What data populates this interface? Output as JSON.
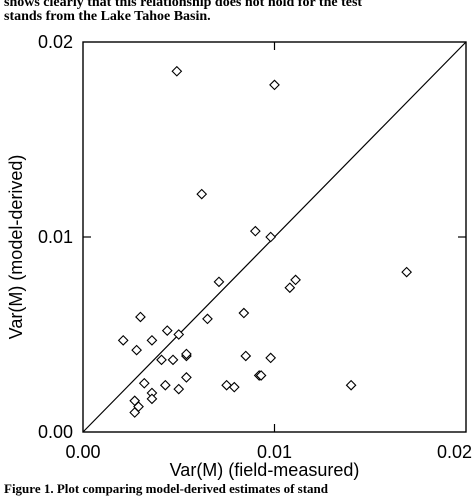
{
  "text_above": [
    "shows clearly that this relationship does not hold for the test",
    "stands from the Lake Tahoe Basin."
  ],
  "caption": "Figure 1. Plot comparing model-derived estimates of stand",
  "chart_data": {
    "type": "scatter",
    "title": "",
    "xlabel": "Var(M) (field-measured)",
    "ylabel": "Var(M) (model-derived)",
    "xlim": [
      0,
      0.02
    ],
    "ylim": [
      0,
      0.02
    ],
    "x_ticks": [
      "0.00",
      "0.01",
      "0.02"
    ],
    "y_ticks": [
      "0.00",
      "0.01",
      "0.02"
    ],
    "grid": false,
    "legend": "none",
    "marker": "diamond",
    "reference_line": "y = x",
    "series": [
      {
        "points": [
          {
            "x": 0.0049,
            "y": 0.0185
          },
          {
            "x": 0.01,
            "y": 0.0178
          },
          {
            "x": 0.0062,
            "y": 0.0122
          },
          {
            "x": 0.009,
            "y": 0.0103
          },
          {
            "x": 0.0098,
            "y": 0.01
          },
          {
            "x": 0.0169,
            "y": 0.0082
          },
          {
            "x": 0.0111,
            "y": 0.0078
          },
          {
            "x": 0.0108,
            "y": 0.0074
          },
          {
            "x": 0.0071,
            "y": 0.0077
          },
          {
            "x": 0.003,
            "y": 0.0059
          },
          {
            "x": 0.0084,
            "y": 0.0061
          },
          {
            "x": 0.0065,
            "y": 0.0058
          },
          {
            "x": 0.0044,
            "y": 0.0052
          },
          {
            "x": 0.005,
            "y": 0.005
          },
          {
            "x": 0.0021,
            "y": 0.0047
          },
          {
            "x": 0.0036,
            "y": 0.0047
          },
          {
            "x": 0.0028,
            "y": 0.0042
          },
          {
            "x": 0.0041,
            "y": 0.0037
          },
          {
            "x": 0.0047,
            "y": 0.0037
          },
          {
            "x": 0.0054,
            "y": 0.0039
          },
          {
            "x": 0.0054,
            "y": 0.004
          },
          {
            "x": 0.0085,
            "y": 0.0039
          },
          {
            "x": 0.0098,
            "y": 0.0038
          },
          {
            "x": 0.0054,
            "y": 0.0028
          },
          {
            "x": 0.0032,
            "y": 0.0025
          },
          {
            "x": 0.0043,
            "y": 0.0024
          },
          {
            "x": 0.005,
            "y": 0.0022
          },
          {
            "x": 0.0075,
            "y": 0.0024
          },
          {
            "x": 0.0079,
            "y": 0.0023
          },
          {
            "x": 0.0092,
            "y": 0.0029
          },
          {
            "x": 0.0093,
            "y": 0.0029
          },
          {
            "x": 0.014,
            "y": 0.0024
          },
          {
            "x": 0.0036,
            "y": 0.002
          },
          {
            "x": 0.0036,
            "y": 0.0017
          },
          {
            "x": 0.0027,
            "y": 0.0016
          },
          {
            "x": 0.0029,
            "y": 0.0013
          },
          {
            "x": 0.0027,
            "y": 0.001
          }
        ]
      }
    ]
  }
}
